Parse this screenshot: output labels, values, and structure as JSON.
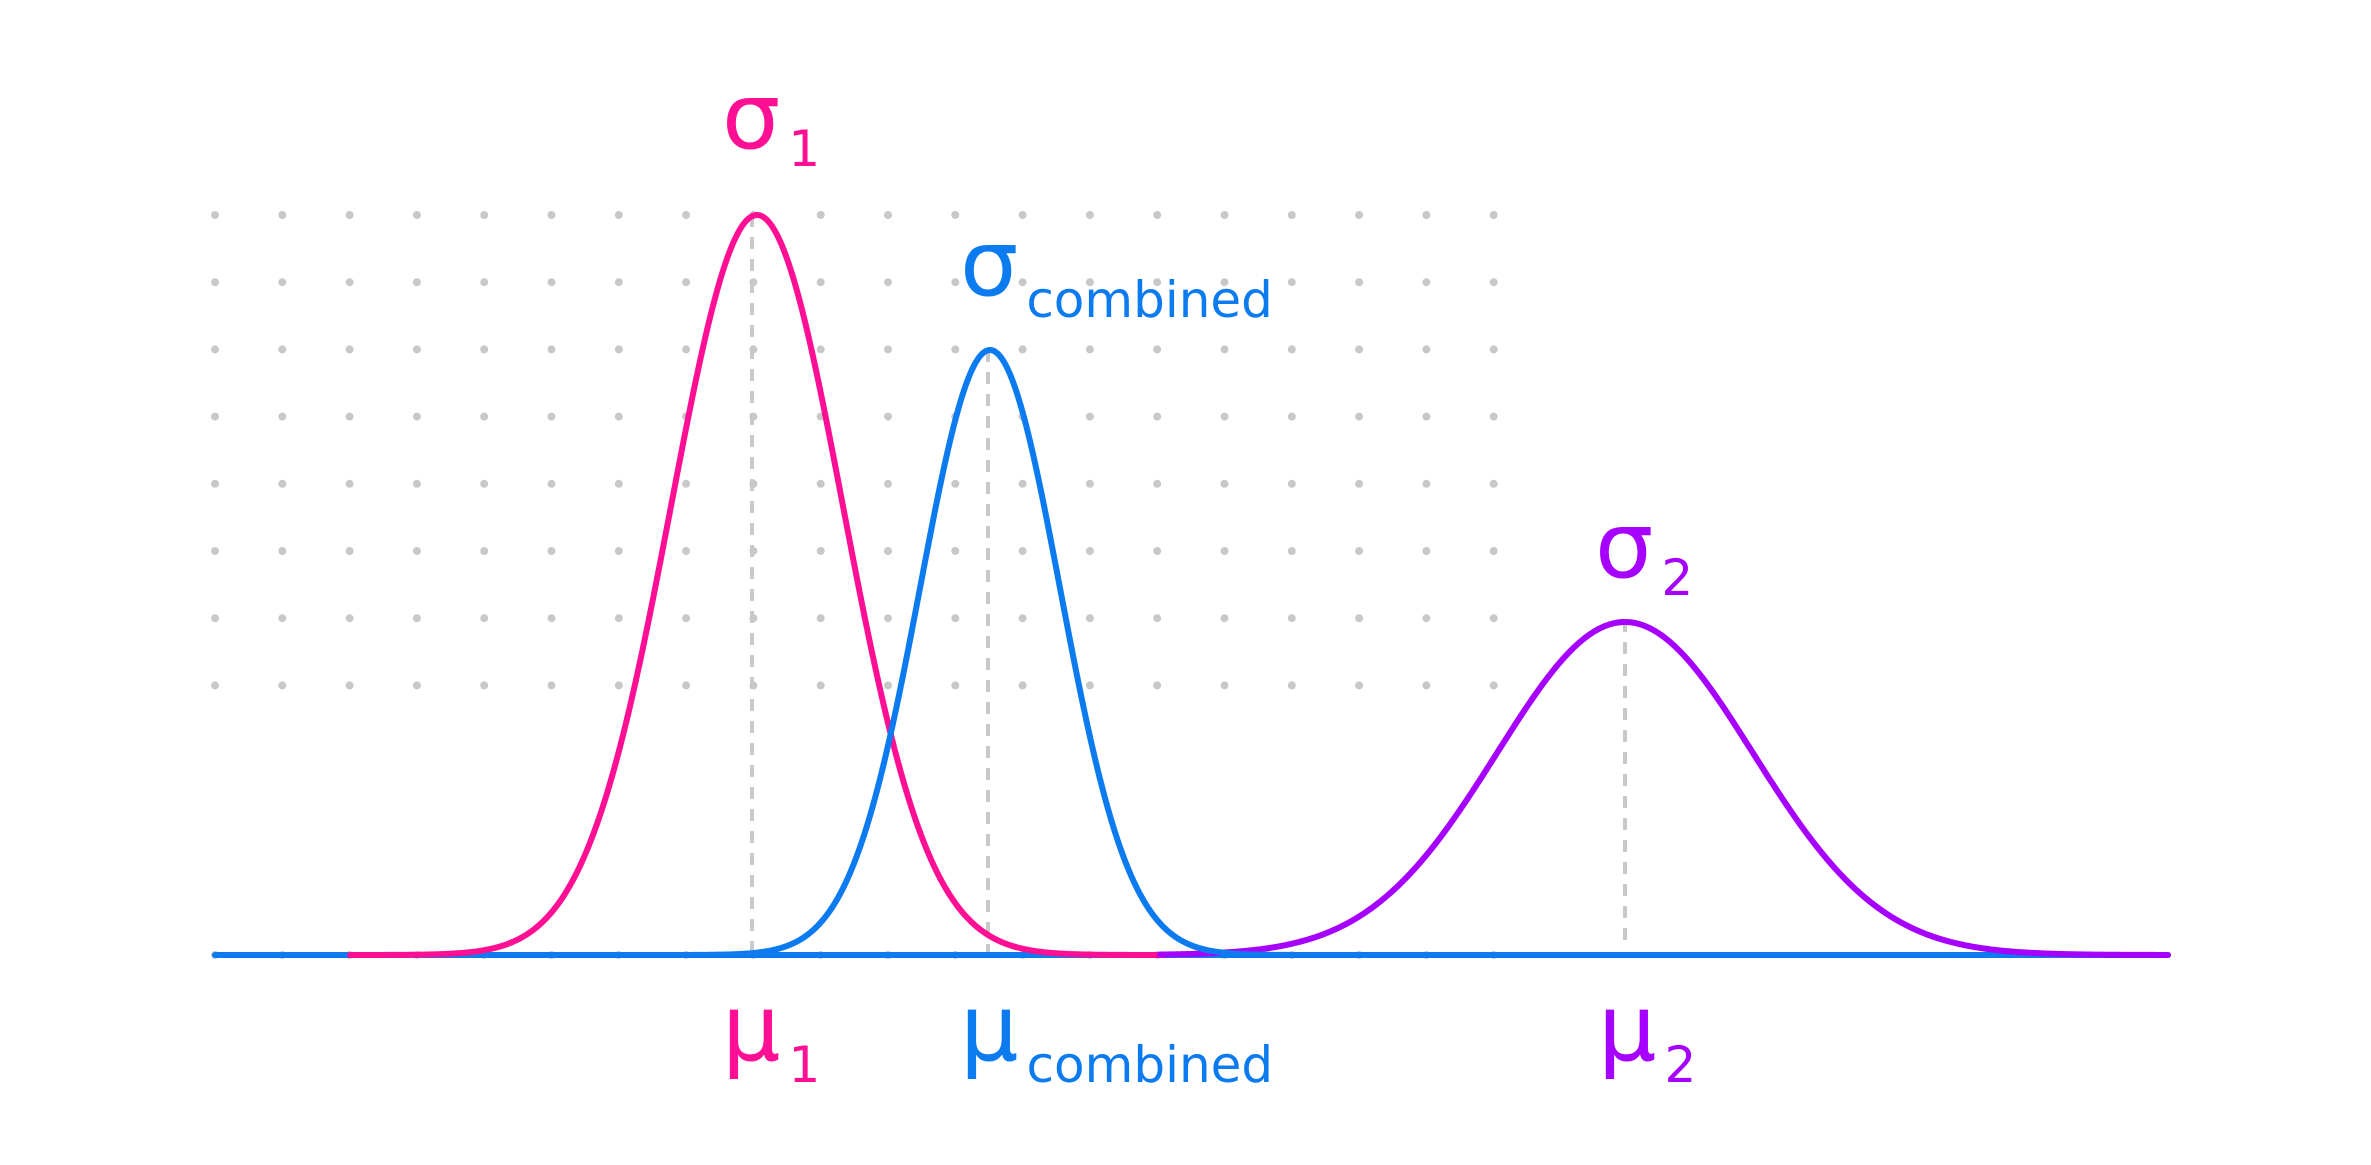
{
  "colors": {
    "series1": "#ff0f93",
    "combined": "#0b7bef",
    "series2": "#a600ff",
    "grid_dot": "#c8c8c8",
    "guide": "#c8c8c8"
  },
  "labels": {
    "sigma1": {
      "main": "σ",
      "sub": "1"
    },
    "sigma_combined": {
      "main": "σ",
      "sub": "combined"
    },
    "sigma2": {
      "main": "σ",
      "sub": "2"
    },
    "mu1": {
      "main": "μ",
      "sub": "1"
    },
    "mu_combined": {
      "main": "μ",
      "sub": "combined"
    },
    "mu2": {
      "main": "μ",
      "sub": "2"
    }
  }
}
